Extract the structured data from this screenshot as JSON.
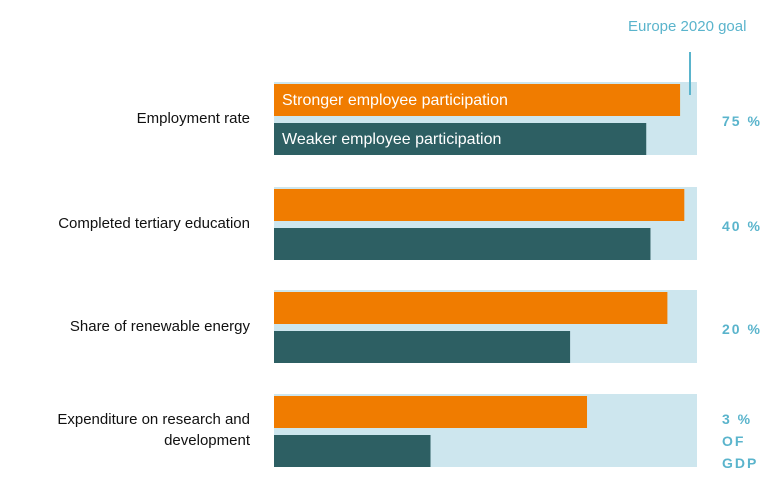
{
  "chart_data": {
    "type": "bar",
    "goal_label": "Europe 2020 goal",
    "categories": [
      "Employment rate",
      "Completed tertiary education",
      "Share of renewable energy",
      "Expenditure on research and development"
    ],
    "targets": [
      [
        "75 %"
      ],
      [
        "40 %"
      ],
      [
        "20 %"
      ],
      [
        "3 %",
        "OF",
        "GDP"
      ]
    ],
    "xlim": [
      0,
      100
    ],
    "background_color": "#cde6ee",
    "series": [
      {
        "name": "Stronger employee participation",
        "color": "#f07c00",
        "values": [
          96,
          97,
          93,
          74
        ]
      },
      {
        "name": "Weaker employee participation",
        "color": "#2d5f63",
        "values": [
          88,
          89,
          70,
          37
        ]
      }
    ]
  }
}
